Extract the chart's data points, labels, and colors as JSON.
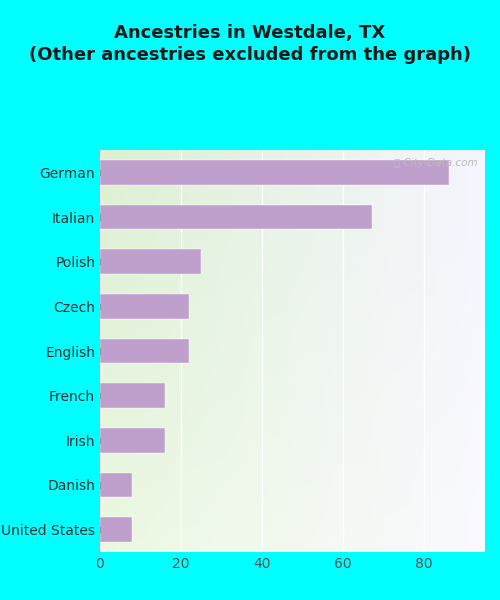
{
  "title": "Ancestries in Westdale, TX\n(Other ancestries excluded from the graph)",
  "categories": [
    "United States",
    "Danish",
    "Irish",
    "French",
    "English",
    "Czech",
    "Polish",
    "Italian",
    "German"
  ],
  "values": [
    8,
    8,
    16,
    16,
    22,
    22,
    25,
    67,
    86
  ],
  "bar_color": "#bf9fcc",
  "background_outer": "#00ffff",
  "background_inner_left": "#e8f5e0",
  "background_inner_right": "#f0f0ff",
  "xlim": [
    0,
    95
  ],
  "xticks": [
    0,
    20,
    40,
    60,
    80
  ],
  "title_fontsize": 13,
  "tick_fontsize": 10,
  "label_fontsize": 10
}
